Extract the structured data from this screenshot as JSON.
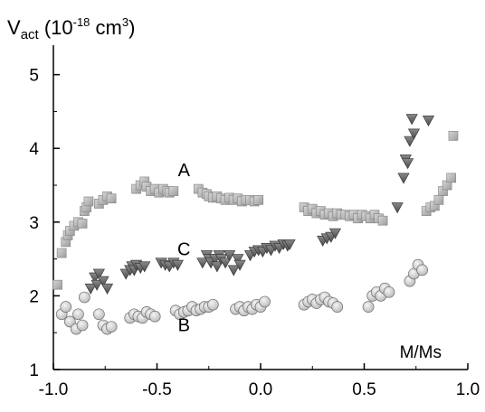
{
  "chart_data": {
    "type": "scatter",
    "ylabel_main": "V",
    "ylabel_sub": "act",
    "ylabel_rest_a": " (10",
    "ylabel_exp": "-18",
    "ylabel_rest_b": " cm",
    "ylabel_exp2": "3",
    "ylabel_rest_c": ")",
    "xlabel_inset": "M/Ms",
    "xlim": [
      -1.0,
      1.0
    ],
    "ylim": [
      1,
      5.4
    ],
    "xticks": [
      -1.0,
      -0.5,
      0.0,
      0.5,
      1.0
    ],
    "xtick_labels": [
      "-1.0",
      "-0.5",
      "0.0",
      "0.5",
      "1.0"
    ],
    "yticks": [
      1,
      2,
      3,
      4,
      5
    ],
    "ytick_labels": [
      "1",
      "2",
      "3",
      "4",
      "5"
    ],
    "series": [
      {
        "name": "A",
        "marker": "square",
        "color": "#bdbdbd",
        "label_at": [
          -0.37,
          3.62
        ],
        "x": [
          -0.98,
          -0.96,
          -0.94,
          -0.93,
          -0.92,
          -0.9,
          -0.88,
          -0.86,
          -0.85,
          -0.84,
          -0.83,
          -0.78,
          -0.76,
          -0.74,
          -0.72,
          -0.6,
          -0.58,
          -0.56,
          -0.55,
          -0.53,
          -0.51,
          -0.49,
          -0.47,
          -0.45,
          -0.44,
          -0.42,
          -0.3,
          -0.28,
          -0.26,
          -0.25,
          -0.23,
          -0.21,
          -0.19,
          -0.17,
          -0.15,
          -0.13,
          -0.11,
          -0.09,
          -0.07,
          -0.05,
          -0.03,
          -0.01,
          0.21,
          0.23,
          0.25,
          0.27,
          0.29,
          0.31,
          0.33,
          0.35,
          0.37,
          0.39,
          0.41,
          0.43,
          0.45,
          0.47,
          0.49,
          0.51,
          0.53,
          0.55,
          0.57,
          0.59,
          0.8,
          0.82,
          0.84,
          0.86,
          0.88,
          0.9,
          0.92,
          0.93
        ],
        "y": [
          2.15,
          2.58,
          2.73,
          2.82,
          2.88,
          2.95,
          3.0,
          2.98,
          3.15,
          3.2,
          3.28,
          3.25,
          3.3,
          3.35,
          3.32,
          3.45,
          3.5,
          3.55,
          3.48,
          3.42,
          3.45,
          3.4,
          3.45,
          3.42,
          3.4,
          3.42,
          3.45,
          3.4,
          3.38,
          3.35,
          3.33,
          3.35,
          3.32,
          3.3,
          3.33,
          3.3,
          3.32,
          3.28,
          3.3,
          3.3,
          3.28,
          3.3,
          3.2,
          3.15,
          3.18,
          3.12,
          3.15,
          3.1,
          3.12,
          3.08,
          3.12,
          3.1,
          3.1,
          3.08,
          3.1,
          3.05,
          3.1,
          3.08,
          3.05,
          3.1,
          3.05,
          3.02,
          3.15,
          3.2,
          3.22,
          3.3,
          3.42,
          3.5,
          3.6,
          4.17
        ]
      },
      {
        "name": "C",
        "marker": "triangle-down",
        "color": "#6e6e6e",
        "label_at": [
          -0.37,
          2.55
        ],
        "x": [
          -0.82,
          -0.8,
          -0.79,
          -0.78,
          -0.76,
          -0.74,
          -0.65,
          -0.63,
          -0.62,
          -0.61,
          -0.6,
          -0.58,
          -0.56,
          -0.48,
          -0.46,
          -0.44,
          -0.42,
          -0.4,
          -0.28,
          -0.26,
          -0.25,
          -0.24,
          -0.22,
          -0.21,
          -0.2,
          -0.19,
          -0.17,
          -0.15,
          -0.13,
          -0.11,
          -0.1,
          -0.05,
          -0.03,
          -0.01,
          0.01,
          0.03,
          0.05,
          0.07,
          0.09,
          0.11,
          0.13,
          0.14,
          0.3,
          0.32,
          0.34,
          0.36,
          0.66,
          0.69,
          0.7,
          0.71,
          0.72,
          0.73,
          0.74,
          0.81
        ],
        "y": [
          2.1,
          2.25,
          2.15,
          2.3,
          2.2,
          2.1,
          2.3,
          2.35,
          2.4,
          2.35,
          2.42,
          2.38,
          2.4,
          2.45,
          2.42,
          2.4,
          2.45,
          2.42,
          2.45,
          2.55,
          2.5,
          2.45,
          2.5,
          2.4,
          2.55,
          2.5,
          2.45,
          2.55,
          2.35,
          2.5,
          2.42,
          2.55,
          2.6,
          2.62,
          2.6,
          2.65,
          2.62,
          2.68,
          2.65,
          2.7,
          2.68,
          2.7,
          2.75,
          2.78,
          2.8,
          2.85,
          3.2,
          3.6,
          3.85,
          3.8,
          4.1,
          4.4,
          4.2,
          4.38
        ]
      },
      {
        "name": "B",
        "marker": "circle",
        "color": "#dcdcdc",
        "label_at": [
          -0.37,
          1.52
        ],
        "x": [
          -0.96,
          -0.94,
          -0.92,
          -0.89,
          -0.88,
          -0.86,
          -0.85,
          -0.78,
          -0.76,
          -0.74,
          -0.72,
          -0.63,
          -0.61,
          -0.59,
          -0.57,
          -0.55,
          -0.53,
          -0.51,
          -0.41,
          -0.39,
          -0.37,
          -0.35,
          -0.33,
          -0.31,
          -0.29,
          -0.27,
          -0.25,
          -0.23,
          -0.12,
          -0.1,
          -0.08,
          -0.06,
          -0.04,
          -0.02,
          0.0,
          0.02,
          0.21,
          0.23,
          0.25,
          0.27,
          0.29,
          0.31,
          0.33,
          0.35,
          0.37,
          0.52,
          0.54,
          0.56,
          0.58,
          0.6,
          0.62,
          0.72,
          0.74,
          0.76,
          0.78
        ],
        "y": [
          1.75,
          1.85,
          1.65,
          1.55,
          1.75,
          1.6,
          1.98,
          1.75,
          1.6,
          1.55,
          1.58,
          1.7,
          1.75,
          1.72,
          1.7,
          1.78,
          1.75,
          1.72,
          1.8,
          1.75,
          1.78,
          1.8,
          1.85,
          1.8,
          1.82,
          1.85,
          1.85,
          1.88,
          1.82,
          1.85,
          1.8,
          1.85,
          1.82,
          1.88,
          1.85,
          1.92,
          1.88,
          1.92,
          1.95,
          1.9,
          1.95,
          1.98,
          1.92,
          1.9,
          1.85,
          1.85,
          2.0,
          2.05,
          2.0,
          2.1,
          2.05,
          2.2,
          2.3,
          2.42,
          2.35
        ]
      }
    ],
    "grid": false,
    "legend": "none"
  }
}
